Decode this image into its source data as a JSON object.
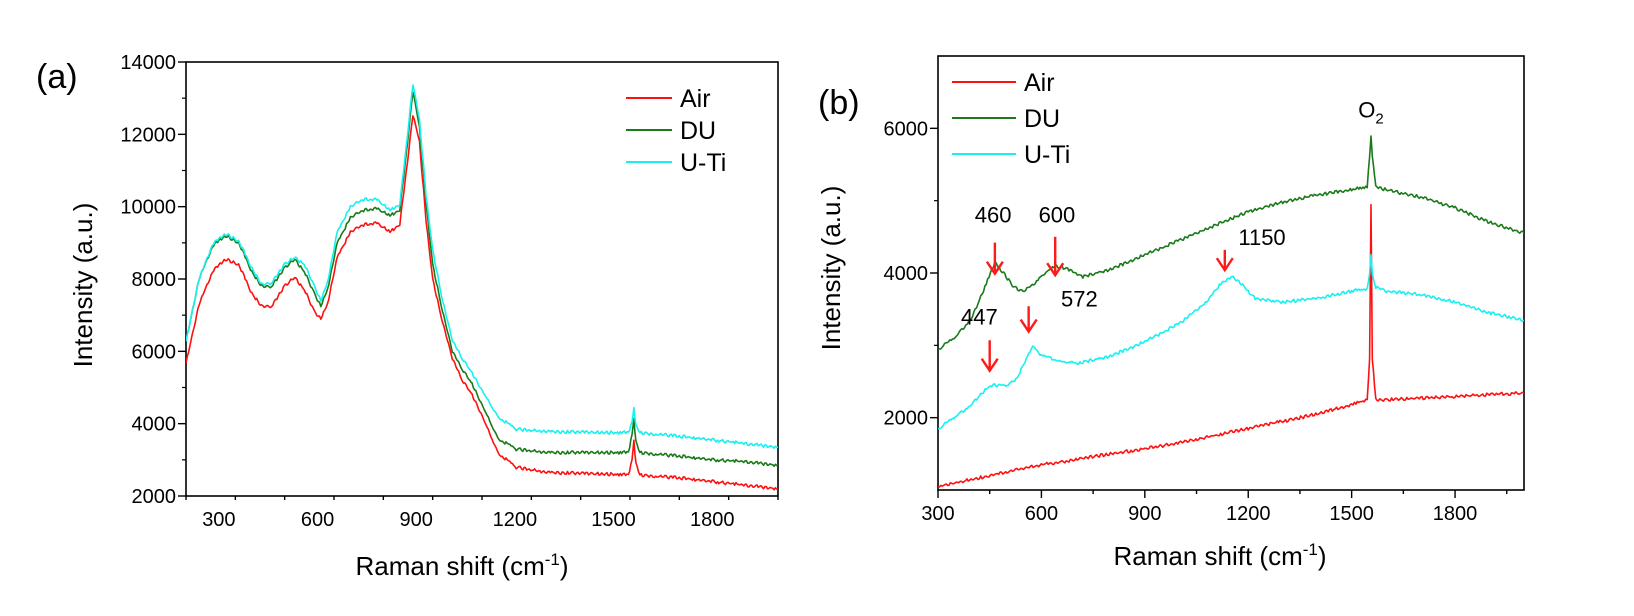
{
  "colors": {
    "air": "#ff1010",
    "du": "#1a7a1a",
    "uti": "#18f0f0",
    "arrow": "#ff1a1a",
    "axis": "#000000"
  },
  "chart_data": [
    {
      "panel_label": "(a)",
      "type": "line",
      "xlabel": "Raman shift (cm",
      "xlabel_sup": "-1",
      "xlabel_close": ")",
      "ylabel": "Intensity (a.u.)",
      "xlim": [
        200,
        2000
      ],
      "ylim": [
        2000,
        14000
      ],
      "xticks": [
        300,
        600,
        900,
        1200,
        1500,
        1800
      ],
      "yticks": [
        2000,
        4000,
        6000,
        8000,
        10000,
        12000,
        14000
      ],
      "tick_labels_x": [
        "300",
        "600",
        "900",
        "1200",
        "1500",
        "1800"
      ],
      "tick_labels_y": [
        "2000",
        "4000",
        "6000",
        "8000",
        "10000",
        "12000",
        "14000"
      ],
      "legend": [
        "Air",
        "DU",
        "U-Ti"
      ],
      "series": [
        {
          "name": "Air",
          "key": "air",
          "points": [
            [
              200,
              5700
            ],
            [
              240,
              7300
            ],
            [
              280,
              8200
            ],
            [
              320,
              8550
            ],
            [
              360,
              8400
            ],
            [
              400,
              7600
            ],
            [
              430,
              7250
            ],
            [
              460,
              7250
            ],
            [
              500,
              7800
            ],
            [
              530,
              8050
            ],
            [
              560,
              7700
            ],
            [
              590,
              7100
            ],
            [
              610,
              6900
            ],
            [
              630,
              7300
            ],
            [
              660,
              8600
            ],
            [
              700,
              9300
            ],
            [
              740,
              9500
            ],
            [
              780,
              9550
            ],
            [
              820,
              9300
            ],
            [
              850,
              9500
            ],
            [
              870,
              11000
            ],
            [
              890,
              12550
            ],
            [
              910,
              11800
            ],
            [
              930,
              9600
            ],
            [
              950,
              8000
            ],
            [
              980,
              6800
            ],
            [
              1010,
              5800
            ],
            [
              1040,
              5200
            ],
            [
              1070,
              4800
            ],
            [
              1100,
              4200
            ],
            [
              1150,
              3200
            ],
            [
              1200,
              2800
            ],
            [
              1300,
              2650
            ],
            [
              1500,
              2600
            ],
            [
              1545,
              2580
            ],
            [
              1556,
              3000
            ],
            [
              1562,
              3500
            ],
            [
              1568,
              2900
            ],
            [
              1580,
              2580
            ],
            [
              1700,
              2500
            ],
            [
              1800,
              2400
            ],
            [
              1900,
              2300
            ],
            [
              2000,
              2200
            ]
          ]
        },
        {
          "name": "DU",
          "key": "du",
          "points": [
            [
              200,
              6300
            ],
            [
              240,
              8000
            ],
            [
              280,
              8900
            ],
            [
              320,
              9200
            ],
            [
              360,
              9000
            ],
            [
              400,
              8200
            ],
            [
              430,
              7800
            ],
            [
              460,
              7800
            ],
            [
              500,
              8300
            ],
            [
              530,
              8550
            ],
            [
              560,
              8200
            ],
            [
              590,
              7600
            ],
            [
              610,
              7250
            ],
            [
              630,
              7700
            ],
            [
              660,
              9000
            ],
            [
              700,
              9700
            ],
            [
              740,
              9900
            ],
            [
              780,
              9950
            ],
            [
              820,
              9750
            ],
            [
              850,
              9900
            ],
            [
              870,
              11500
            ],
            [
              890,
              13200
            ],
            [
              910,
              12200
            ],
            [
              930,
              10100
            ],
            [
              950,
              8400
            ],
            [
              980,
              7100
            ],
            [
              1010,
              6000
            ],
            [
              1040,
              5500
            ],
            [
              1070,
              5100
            ],
            [
              1100,
              4500
            ],
            [
              1150,
              3600
            ],
            [
              1200,
              3300
            ],
            [
              1300,
              3200
            ],
            [
              1500,
              3200
            ],
            [
              1545,
              3200
            ],
            [
              1556,
              3700
            ],
            [
              1562,
              4100
            ],
            [
              1568,
              3500
            ],
            [
              1580,
              3200
            ],
            [
              1700,
              3100
            ],
            [
              1800,
              3000
            ],
            [
              1900,
              2950
            ],
            [
              2000,
              2850
            ]
          ]
        },
        {
          "name": "U-Ti",
          "key": "uti",
          "points": [
            [
              200,
              6300
            ],
            [
              240,
              8000
            ],
            [
              280,
              8950
            ],
            [
              320,
              9250
            ],
            [
              360,
              9050
            ],
            [
              400,
              8300
            ],
            [
              430,
              7850
            ],
            [
              460,
              7900
            ],
            [
              500,
              8400
            ],
            [
              530,
              8600
            ],
            [
              560,
              8400
            ],
            [
              590,
              7800
            ],
            [
              610,
              7400
            ],
            [
              630,
              7900
            ],
            [
              660,
              9300
            ],
            [
              700,
              10000
            ],
            [
              740,
              10200
            ],
            [
              780,
              10200
            ],
            [
              820,
              9900
            ],
            [
              850,
              10050
            ],
            [
              870,
              11700
            ],
            [
              890,
              13400
            ],
            [
              910,
              12400
            ],
            [
              930,
              10300
            ],
            [
              950,
              8800
            ],
            [
              980,
              7400
            ],
            [
              1010,
              6300
            ],
            [
              1040,
              5800
            ],
            [
              1070,
              5400
            ],
            [
              1100,
              4900
            ],
            [
              1150,
              4200
            ],
            [
              1200,
              3850
            ],
            [
              1300,
              3780
            ],
            [
              1500,
              3750
            ],
            [
              1545,
              3750
            ],
            [
              1556,
              4050
            ],
            [
              1562,
              4400
            ],
            [
              1568,
              3950
            ],
            [
              1580,
              3750
            ],
            [
              1700,
              3650
            ],
            [
              1800,
              3550
            ],
            [
              1900,
              3450
            ],
            [
              2000,
              3350
            ]
          ]
        }
      ]
    },
    {
      "panel_label": "(b)",
      "type": "line",
      "xlabel": "Raman shift (cm",
      "xlabel_sup": "-1",
      "xlabel_close": ")",
      "ylabel": "Intensity (a.u.)",
      "xlim": [
        300,
        2000
      ],
      "ylim": [
        1000,
        7000
      ],
      "xticks": [
        300,
        600,
        900,
        1200,
        1500,
        1800
      ],
      "yticks": [
        2000,
        4000,
        6000
      ],
      "tick_labels_x": [
        "300",
        "600",
        "900",
        "1200",
        "1500",
        "1800"
      ],
      "tick_labels_y": [
        "2000",
        "4000",
        "6000"
      ],
      "legend": [
        "Air",
        "DU",
        "U-Ti"
      ],
      "annotations": [
        {
          "text": "460",
          "x": 460,
          "y": 4700
        },
        {
          "text": "600",
          "x": 645,
          "y": 4700
        },
        {
          "text": "1150",
          "x": 1240,
          "y": 4390
        },
        {
          "text": "447",
          "x": 420,
          "y": 3290
        },
        {
          "text": "572",
          "x": 710,
          "y": 3540
        },
        {
          "text": "O",
          "sub": "2",
          "x": 1556,
          "y": 6150
        }
      ],
      "arrows": [
        {
          "x": 465,
          "y_from": 4420,
          "y_to": 3990
        },
        {
          "x": 640,
          "y_from": 4500,
          "y_to": 3970
        },
        {
          "x": 1132,
          "y_from": 4320,
          "y_to": 4040
        },
        {
          "x": 563,
          "y_from": 3540,
          "y_to": 3190
        },
        {
          "x": 450,
          "y_from": 3070,
          "y_to": 2650
        }
      ],
      "series": [
        {
          "name": "Air",
          "key": "air",
          "points": [
            [
              300,
              1050
            ],
            [
              400,
              1150
            ],
            [
              500,
              1250
            ],
            [
              600,
              1350
            ],
            [
              700,
              1420
            ],
            [
              800,
              1500
            ],
            [
              900,
              1570
            ],
            [
              1000,
              1650
            ],
            [
              1100,
              1750
            ],
            [
              1200,
              1850
            ],
            [
              1300,
              1950
            ],
            [
              1400,
              2050
            ],
            [
              1500,
              2180
            ],
            [
              1545,
              2250
            ],
            [
              1552,
              2800
            ],
            [
              1556,
              4950
            ],
            [
              1560,
              2800
            ],
            [
              1570,
              2250
            ],
            [
              1600,
              2250
            ],
            [
              1700,
              2270
            ],
            [
              1800,
              2290
            ],
            [
              1900,
              2320
            ],
            [
              2000,
              2340
            ]
          ]
        },
        {
          "name": "DU",
          "key": "du",
          "points": [
            [
              300,
              2950
            ],
            [
              350,
              3100
            ],
            [
              400,
              3400
            ],
            [
              440,
              3850
            ],
            [
              465,
              4150
            ],
            [
              490,
              4000
            ],
            [
              520,
              3800
            ],
            [
              550,
              3750
            ],
            [
              590,
              3900
            ],
            [
              640,
              4100
            ],
            [
              680,
              4050
            ],
            [
              720,
              3950
            ],
            [
              800,
              4050
            ],
            [
              900,
              4250
            ],
            [
              1000,
              4450
            ],
            [
              1100,
              4650
            ],
            [
              1200,
              4850
            ],
            [
              1300,
              4980
            ],
            [
              1400,
              5080
            ],
            [
              1500,
              5150
            ],
            [
              1545,
              5200
            ],
            [
              1552,
              5600
            ],
            [
              1556,
              5900
            ],
            [
              1560,
              5600
            ],
            [
              1570,
              5200
            ],
            [
              1600,
              5150
            ],
            [
              1700,
              5050
            ],
            [
              1800,
              4900
            ],
            [
              1900,
              4700
            ],
            [
              2000,
              4550
            ]
          ]
        },
        {
          "name": "U-Ti",
          "key": "uti",
          "points": [
            [
              300,
              1850
            ],
            [
              350,
              2000
            ],
            [
              400,
              2200
            ],
            [
              440,
              2400
            ],
            [
              460,
              2450
            ],
            [
              500,
              2450
            ],
            [
              530,
              2550
            ],
            [
              560,
              2850
            ],
            [
              575,
              3000
            ],
            [
              600,
              2850
            ],
            [
              650,
              2800
            ],
            [
              700,
              2750
            ],
            [
              800,
              2850
            ],
            [
              900,
              3050
            ],
            [
              1000,
              3300
            ],
            [
              1080,
              3600
            ],
            [
              1120,
              3850
            ],
            [
              1150,
              3950
            ],
            [
              1180,
              3850
            ],
            [
              1220,
              3650
            ],
            [
              1300,
              3600
            ],
            [
              1400,
              3650
            ],
            [
              1500,
              3750
            ],
            [
              1545,
              3780
            ],
            [
              1552,
              4000
            ],
            [
              1556,
              4250
            ],
            [
              1560,
              4000
            ],
            [
              1570,
              3800
            ],
            [
              1600,
              3750
            ],
            [
              1700,
              3700
            ],
            [
              1800,
              3600
            ],
            [
              1900,
              3450
            ],
            [
              2000,
              3350
            ]
          ]
        }
      ]
    }
  ]
}
